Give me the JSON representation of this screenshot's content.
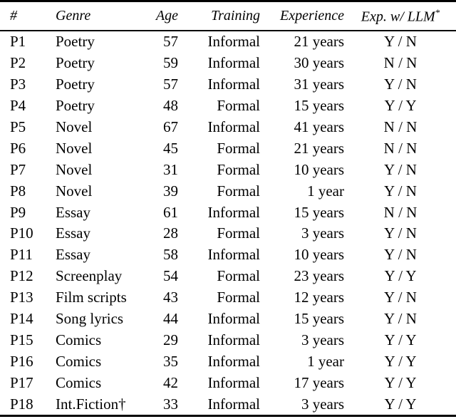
{
  "table": {
    "columns": [
      {
        "key": "id",
        "label": "#"
      },
      {
        "key": "genre",
        "label": "Genre"
      },
      {
        "key": "age",
        "label": "Age"
      },
      {
        "key": "training",
        "label": "Training"
      },
      {
        "key": "experience",
        "label": "Experience"
      },
      {
        "key": "llm",
        "label": "Exp. w/ LLM",
        "sup": "*"
      }
    ],
    "rows": [
      {
        "id": "P1",
        "genre": "Poetry",
        "age": "57",
        "training": "Informal",
        "experience": "21 years",
        "llm": "Y / N"
      },
      {
        "id": "P2",
        "genre": "Poetry",
        "age": "59",
        "training": "Informal",
        "experience": "30 years",
        "llm": "N / N"
      },
      {
        "id": "P3",
        "genre": "Poetry",
        "age": "57",
        "training": "Informal",
        "experience": "31 years",
        "llm": "Y / N"
      },
      {
        "id": "P4",
        "genre": "Poetry",
        "age": "48",
        "training": "Formal",
        "experience": "15 years",
        "llm": "Y / Y"
      },
      {
        "id": "P5",
        "genre": "Novel",
        "age": "67",
        "training": "Informal",
        "experience": "41 years",
        "llm": "N / N"
      },
      {
        "id": "P6",
        "genre": "Novel",
        "age": "45",
        "training": "Formal",
        "experience": "21 years",
        "llm": "N / N"
      },
      {
        "id": "P7",
        "genre": "Novel",
        "age": "31",
        "training": "Formal",
        "experience": "10 years",
        "llm": "Y / N"
      },
      {
        "id": "P8",
        "genre": "Novel",
        "age": "39",
        "training": "Formal",
        "experience": "1 year",
        "llm": "Y / N"
      },
      {
        "id": "P9",
        "genre": "Essay",
        "age": "61",
        "training": "Informal",
        "experience": "15 years",
        "llm": "N / N"
      },
      {
        "id": "P10",
        "genre": "Essay",
        "age": "28",
        "training": "Formal",
        "experience": "3 years",
        "llm": "Y / N"
      },
      {
        "id": "P11",
        "genre": "Essay",
        "age": "58",
        "training": "Informal",
        "experience": "10 years",
        "llm": "Y / N"
      },
      {
        "id": "P12",
        "genre": "Screenplay",
        "age": "54",
        "training": "Formal",
        "experience": "23 years",
        "llm": "Y / Y"
      },
      {
        "id": "P13",
        "genre": "Film scripts",
        "age": "43",
        "training": "Formal",
        "experience": "12 years",
        "llm": "Y / N"
      },
      {
        "id": "P14",
        "genre": "Song lyrics",
        "age": "44",
        "training": "Informal",
        "experience": "15 years",
        "llm": "Y / N"
      },
      {
        "id": "P15",
        "genre": "Comics",
        "age": "29",
        "training": "Informal",
        "experience": "3 years",
        "llm": "Y / Y"
      },
      {
        "id": "P16",
        "genre": "Comics",
        "age": "35",
        "training": "Informal",
        "experience": "1 year",
        "llm": "Y / Y"
      },
      {
        "id": "P17",
        "genre": "Comics",
        "age": "42",
        "training": "Informal",
        "experience": "17 years",
        "llm": "Y / Y"
      },
      {
        "id": "P18",
        "genre": "Int.Fiction†",
        "age": "33",
        "training": "Informal",
        "experience": "3 years",
        "llm": "Y / Y"
      }
    ]
  }
}
